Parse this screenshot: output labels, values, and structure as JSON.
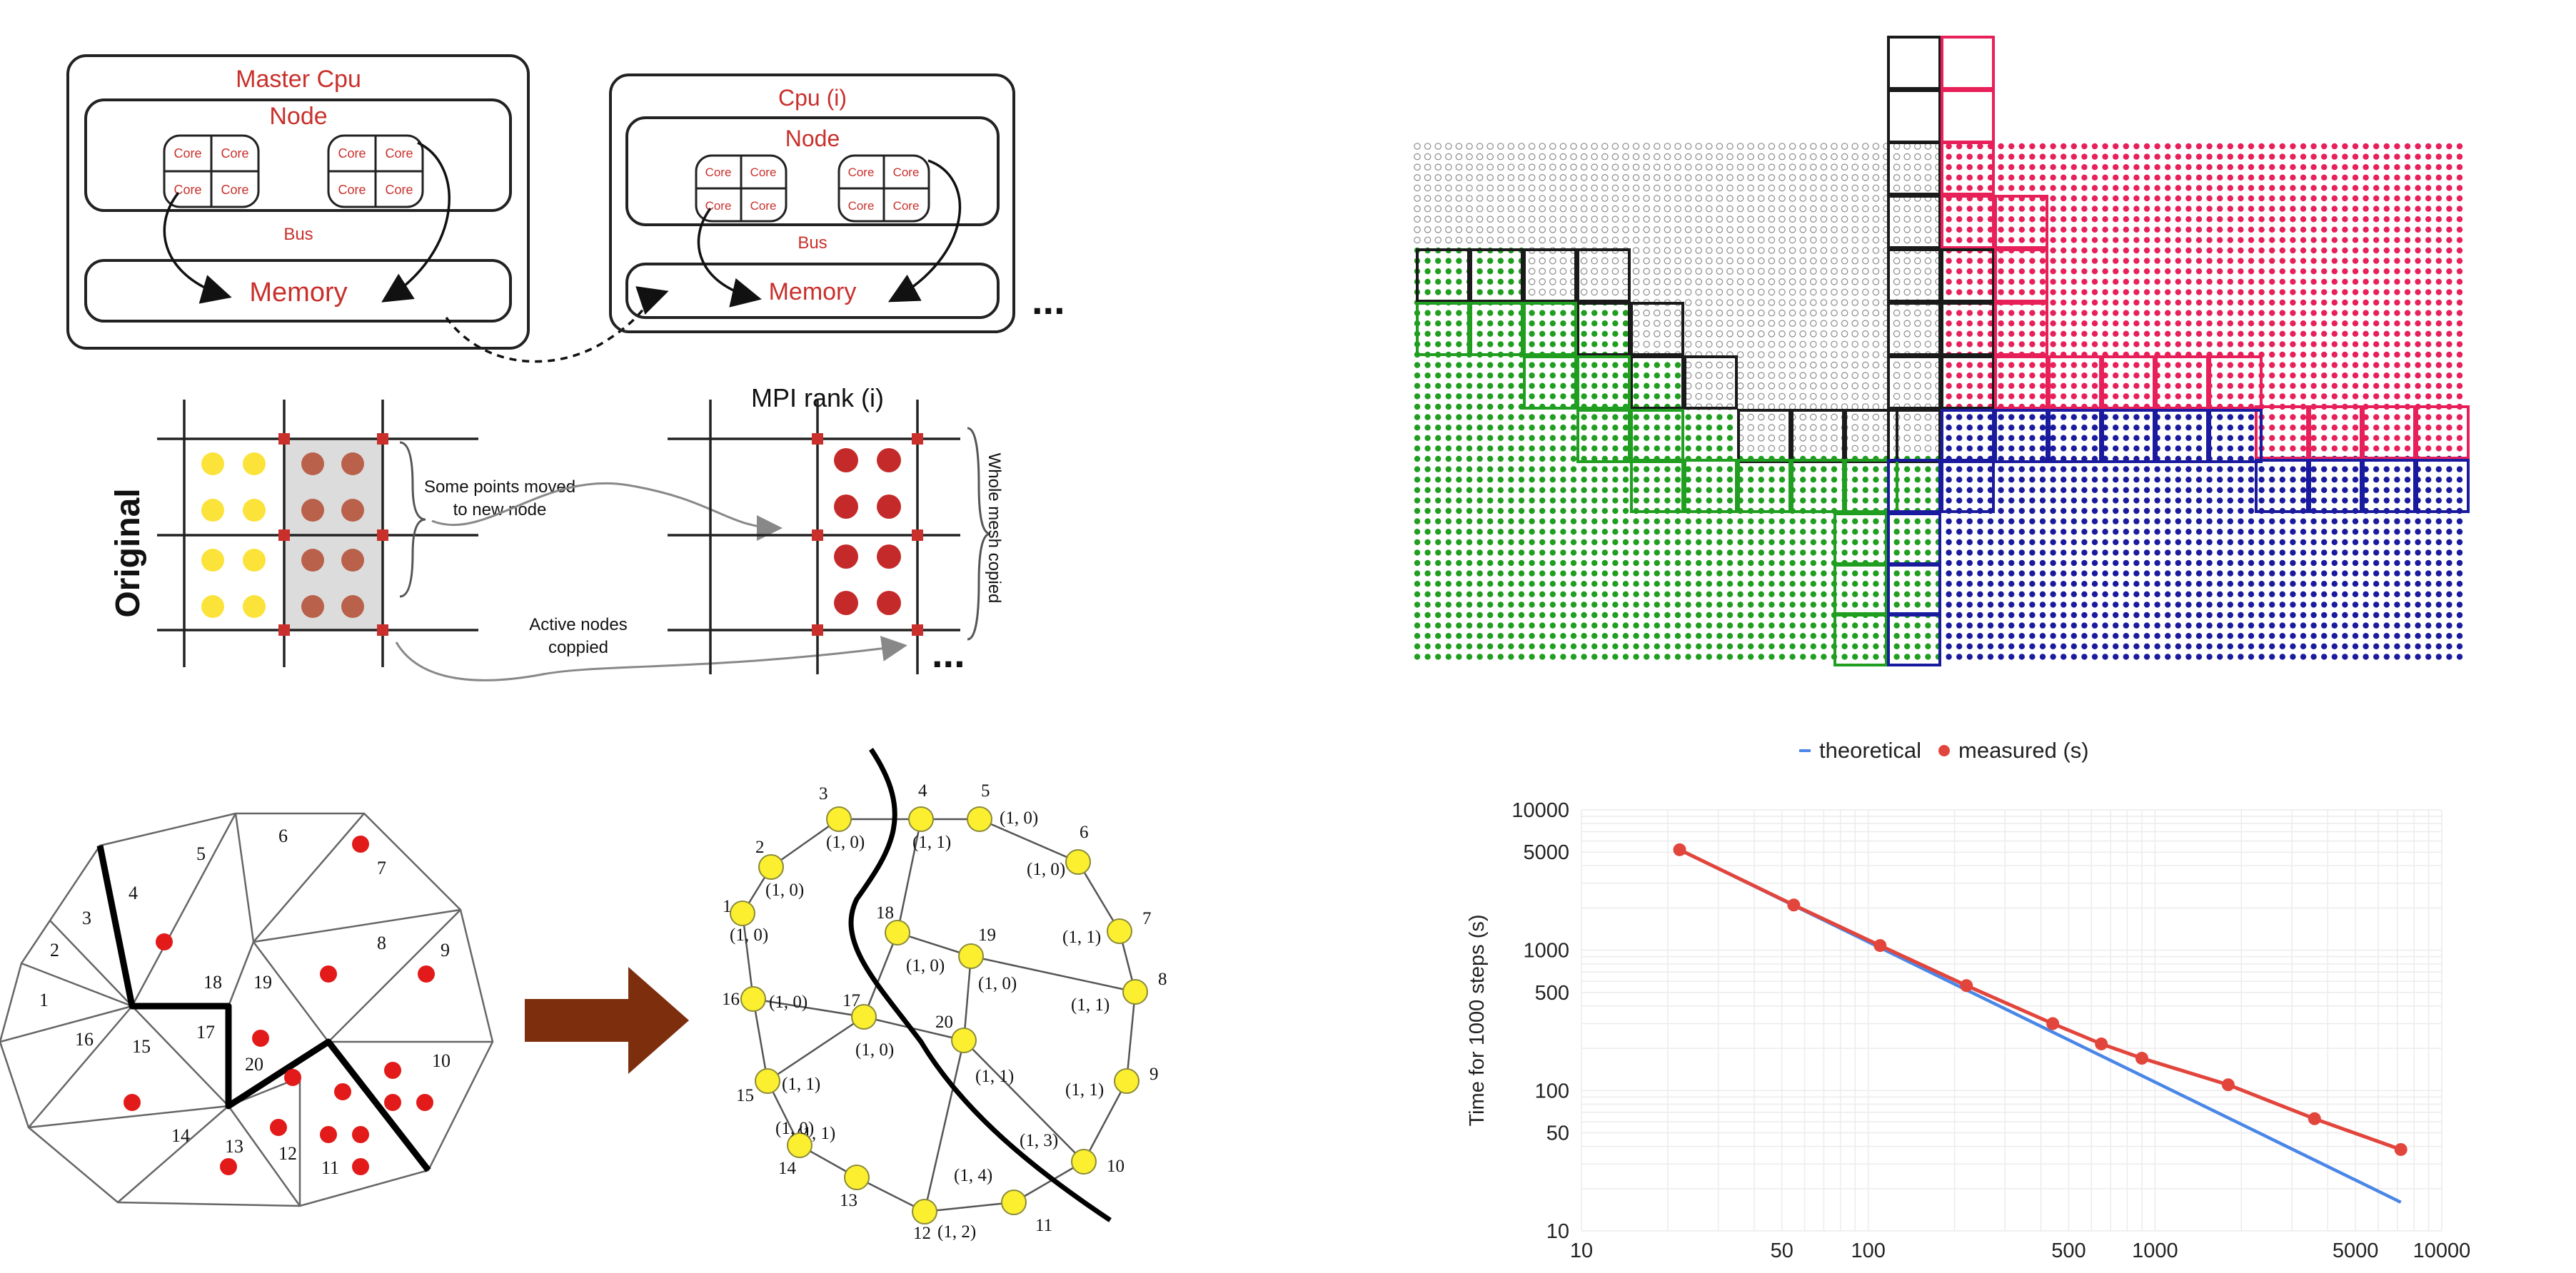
{
  "cpu_diagram": {
    "master": {
      "title": "Master Cpu",
      "node": "Node",
      "bus": "Bus",
      "memory": "Memory",
      "core": "Core"
    },
    "worker": {
      "title": "Cpu (i)",
      "node": "Node",
      "bus": "Bus",
      "memory": "Memory",
      "core": "Core"
    },
    "ellipsis": "..."
  },
  "mesh_copy": {
    "original_label": "Original",
    "mpi_label": "MPI rank (i)",
    "moved_note_line1": "Some points moved",
    "moved_note_line2": "to new node",
    "active_note_line1": "Active nodes",
    "active_note_line2": "coppied",
    "whole_mesh_note": "Whole mesh copied",
    "ellipsis": "..."
  },
  "domain_grid": {
    "colors": {
      "gray": "#8c8c8c",
      "black": "#1a1a1a",
      "red": "#e8205a",
      "green": "#1f9e1f",
      "blue": "#1a1a9e"
    }
  },
  "triangulation": {
    "labels": [
      "1",
      "2",
      "3",
      "4",
      "5",
      "6",
      "7",
      "8",
      "9",
      "10",
      "11",
      "12",
      "13",
      "14",
      "15",
      "16",
      "17",
      "18",
      "19",
      "20"
    ]
  },
  "graph": {
    "nodes": [
      {
        "id": "1",
        "w": "(1, 0)"
      },
      {
        "id": "2",
        "w": "(1, 0)"
      },
      {
        "id": "3",
        "w": "(1, 0)"
      },
      {
        "id": "4",
        "w": "(1, 1)"
      },
      {
        "id": "5",
        "w": "(1, 0)"
      },
      {
        "id": "6",
        "w": "(1, 0)"
      },
      {
        "id": "7",
        "w": "(1, 1)"
      },
      {
        "id": "8",
        "w": "(1, 1)"
      },
      {
        "id": "9",
        "w": "(1, 1)"
      },
      {
        "id": "10",
        "w": "(1, 3)"
      },
      {
        "id": "11",
        "w": "(1, 4)"
      },
      {
        "id": "12",
        "w": "(1, 2)"
      },
      {
        "id": "13",
        "w": "(1, 1)"
      },
      {
        "id": "14",
        "w": "(1, 0)"
      },
      {
        "id": "15",
        "w": "(1, 1)"
      },
      {
        "id": "16",
        "w": "(1, 0)"
      },
      {
        "id": "17",
        "w": "(1, 0)"
      },
      {
        "id": "18",
        "w": "(1, 0)"
      },
      {
        "id": "19",
        "w": "(1, 0)"
      },
      {
        "id": "20",
        "w": "(1, 1)"
      }
    ]
  },
  "chart_data": {
    "type": "line",
    "title": "",
    "xlabel": "",
    "ylabel": "Time for 1000 steps (s)",
    "x_scale": "log",
    "y_scale": "log",
    "xlim": [
      10,
      10000
    ],
    "ylim": [
      10,
      10000
    ],
    "x_ticks": [
      "10",
      "50",
      "100",
      "500",
      "1000",
      "5000",
      "10000"
    ],
    "y_ticks": [
      "10",
      "50",
      "100",
      "500",
      "1000",
      "5000",
      "10000"
    ],
    "legend": "top",
    "series": [
      {
        "name": "theoretical",
        "color": "#4a86e8",
        "x": [
          22,
          7200
        ],
        "y": [
          5200,
          16
        ]
      },
      {
        "name": "measured (s)",
        "color": "#e2453c",
        "x": [
          22,
          55,
          110,
          220,
          440,
          650,
          900,
          1800,
          3600,
          7200
        ],
        "y": [
          5200,
          2100,
          1080,
          560,
          300,
          215,
          170,
          110,
          63,
          38
        ]
      }
    ]
  }
}
